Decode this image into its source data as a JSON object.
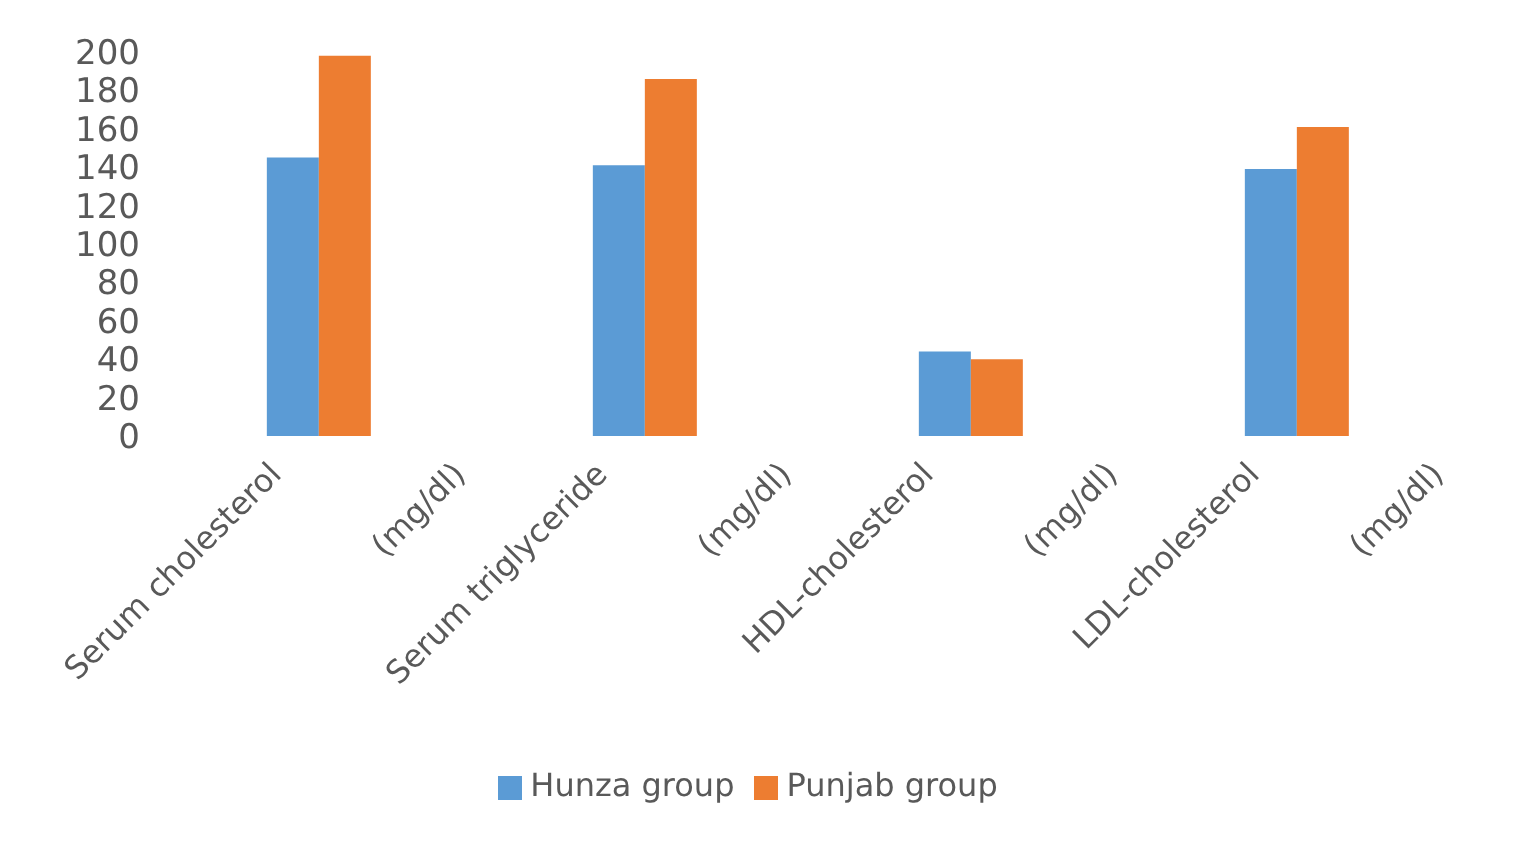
{
  "chart_data": {
    "type": "bar",
    "categories": [
      "Serum cholesterol\n(mg/dl)",
      "Serum triglyceride\n(mg/dl)",
      "HDL-cholesterol\n(mg/dl)",
      "LDL-cholesterol\n(mg/dl)"
    ],
    "series": [
      {
        "name": "Hunza group",
        "color": "#5b9bd5",
        "values": [
          145,
          141,
          44,
          139
        ]
      },
      {
        "name": "Punjab group",
        "color": "#ed7d31",
        "values": [
          198,
          186,
          40,
          161
        ]
      }
    ],
    "ylim": [
      0,
      200
    ],
    "yticks": [
      0,
      20,
      40,
      60,
      80,
      100,
      120,
      140,
      160,
      180,
      200
    ],
    "grid": false,
    "legend": "bottom"
  }
}
